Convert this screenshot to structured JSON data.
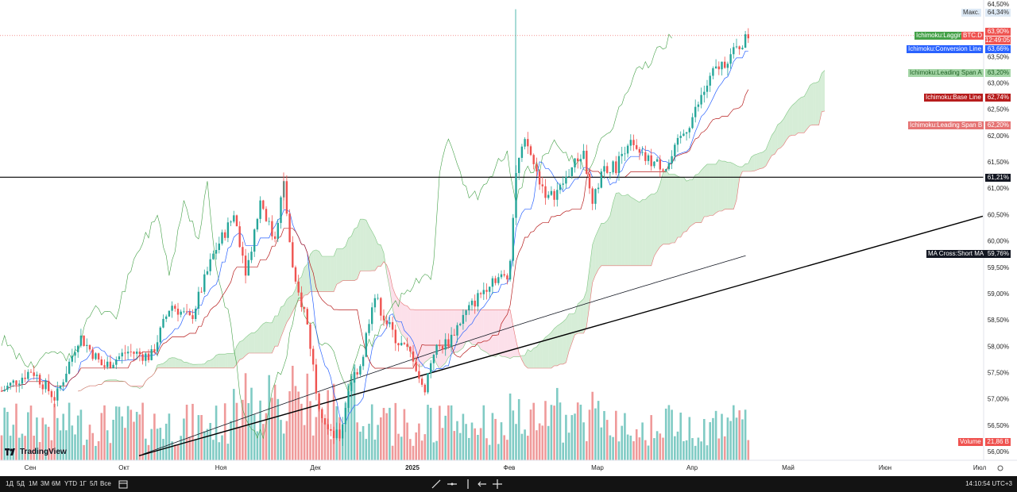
{
  "chart_data": {
    "type": "candlestick",
    "symbol_label": "BTC.D",
    "y_ticks": [
      "64,50%",
      "64,00%",
      "63,50%",
      "63,00%",
      "62,50%",
      "62,00%",
      "61,50%",
      "61,00%",
      "60,50%",
      "60,00%",
      "59,50%",
      "59,00%",
      "58,50%",
      "58,00%",
      "57,50%",
      "57,00%",
      "56,50%",
      "56,00%"
    ],
    "ylim": [
      55.9,
      64.55
    ],
    "x_labels": [
      "Сен",
      "Окт",
      "Ноя",
      "Дек",
      "2025",
      "Фев",
      "Мар",
      "Апр",
      "Май",
      "Июн",
      "Июл"
    ],
    "last_price": 63.9,
    "horizontal_level": 61.21,
    "horizontal_level_label": "61,21%",
    "candles": [
      {
        "t": "Сен",
        "o": 57.2,
        "c": 57.4,
        "h": 57.6,
        "l": 57.0
      },
      {
        "t": "Окт",
        "o": 58.0,
        "c": 57.8,
        "h": 58.1,
        "l": 57.6
      },
      {
        "t": "Ноя",
        "o": 58.6,
        "c": 60.4,
        "h": 60.5,
        "l": 58.4
      },
      {
        "t": "Ноя",
        "o": 60.5,
        "c": 60.1,
        "h": 61.3,
        "l": 59.9
      },
      {
        "t": "Дек",
        "o": 59.8,
        "c": 57.0,
        "h": 60.0,
        "l": 56.1
      },
      {
        "t": "2025",
        "o": 57.6,
        "c": 58.0,
        "h": 58.3,
        "l": 57.0
      },
      {
        "t": "Фев",
        "o": 59.2,
        "c": 61.7,
        "h": 64.4,
        "l": 59.1
      },
      {
        "t": "Мар",
        "o": 61.2,
        "c": 60.7,
        "h": 61.9,
        "l": 60.3
      },
      {
        "t": "Апр",
        "o": 61.5,
        "c": 63.9,
        "h": 64.1,
        "l": 61.4
      }
    ],
    "indicator_labels": {
      "lagging": "Ichimoku:Lagging Span",
      "conversion": "Ichimoku:Conversion Line",
      "span_a": "Ichimoku:Leading Span A",
      "base": "Ichimoku:Base Line",
      "span_b": "Ichimoku:Leading Span B",
      "ma": "MA Cross:Short MA",
      "volume": "Volume"
    },
    "indicator_values": {
      "price": "63,90%",
      "countdown": "12:49:05",
      "conversion": "63,66%",
      "span_a": "63,20%",
      "base": "62,74%",
      "span_b": "62,20%",
      "ma": "59,76%",
      "volume": "21,86 B",
      "max_label": "Макс.",
      "max": "64,34%"
    },
    "colors": {
      "up": "#26a69a",
      "down": "#ef5350",
      "cloud_up": "#a5d6a7",
      "cloud_down": "#f8bbd0",
      "lagging": "#43a047",
      "conversion": "#2962ff",
      "base": "#b71c1c",
      "span_a_tag": "#a5d6a7",
      "span_b_tag": "#e57373",
      "volume_up": "#80cbc4",
      "volume_down": "#ef9a9a"
    }
  },
  "branding": "TradingView",
  "bottom_bar": {
    "periods": [
      "1Д",
      "5Д",
      "1М",
      "3М",
      "6М",
      "YTD",
      "1Г",
      "5Л",
      "Все"
    ],
    "time": "14:10:54 UTC+3"
  }
}
